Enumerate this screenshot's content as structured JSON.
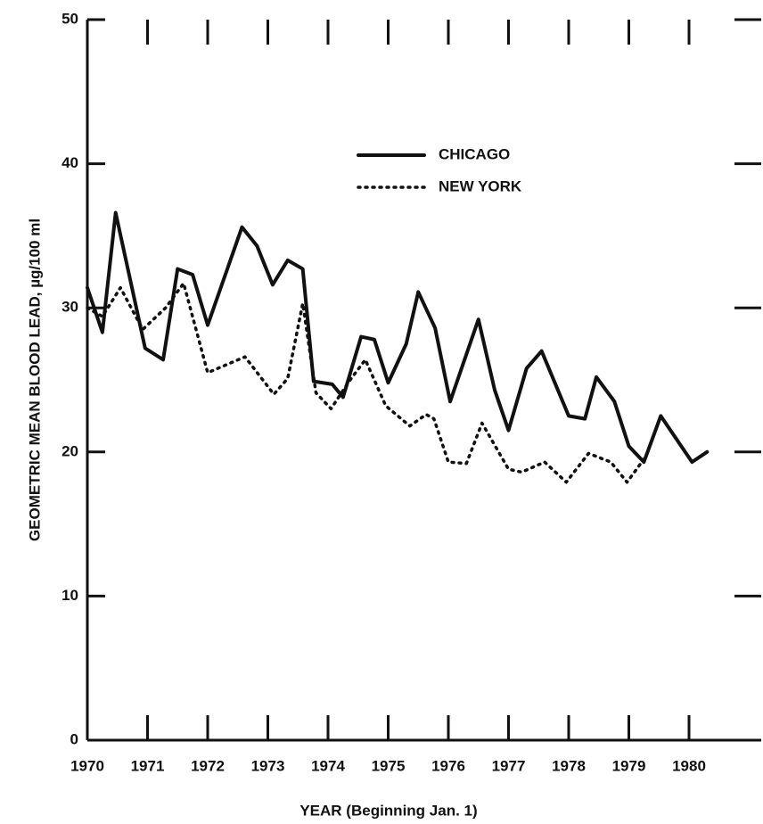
{
  "chart_data": {
    "type": "line",
    "y_label": "GEOMETRIC MEAN BLOOD LEAD, µg/100 ml",
    "x_label": "YEAR (Beginning Jan. 1)",
    "xlim": [
      1970,
      1981.2
    ],
    "xticks": [
      1970,
      1971,
      1972,
      1973,
      1974,
      1975,
      1976,
      1977,
      1978,
      1979,
      1980
    ],
    "ylim": [
      0,
      50
    ],
    "yticks": [
      0,
      10,
      20,
      30,
      40,
      50
    ],
    "series": [
      {
        "name": "CHICAGO",
        "color": "#111111",
        "style": "solid",
        "x": [
          1970.0,
          1970.25,
          1970.47,
          1970.96,
          1971.26,
          1971.5,
          1971.75,
          1972.0,
          1972.57,
          1972.82,
          1973.08,
          1973.33,
          1973.58,
          1973.76,
          1974.07,
          1974.25,
          1974.55,
          1974.77,
          1975.0,
          1975.3,
          1975.5,
          1975.78,
          1976.03,
          1976.5,
          1976.77,
          1977.0,
          1977.3,
          1977.55,
          1978.0,
          1978.27,
          1978.46,
          1978.76,
          1979.0,
          1979.25,
          1979.53,
          1980.05,
          1980.3
        ],
        "values": [
          31.4,
          28.3,
          36.6,
          27.2,
          26.4,
          32.7,
          32.3,
          28.8,
          35.6,
          34.3,
          31.6,
          33.3,
          32.7,
          24.9,
          24.7,
          23.8,
          28.0,
          27.8,
          24.8,
          27.5,
          31.1,
          28.6,
          23.5,
          29.2,
          24.3,
          21.5,
          25.8,
          27.0,
          22.5,
          22.3,
          25.2,
          23.5,
          20.4,
          19.3,
          22.5,
          19.3,
          20.0
        ]
      },
      {
        "name": "NEW YORK",
        "color": "#111111",
        "style": "dotted",
        "x": [
          1970.0,
          1970.25,
          1970.55,
          1970.92,
          1971.3,
          1971.6,
          1972.0,
          1972.62,
          1973.1,
          1973.33,
          1973.58,
          1973.8,
          1974.05,
          1974.35,
          1974.62,
          1974.96,
          1975.36,
          1975.63,
          1975.76,
          1976.0,
          1976.3,
          1976.56,
          1977.0,
          1977.22,
          1977.6,
          1977.96,
          1978.33,
          1978.7,
          1978.97,
          1979.25
        ],
        "values": [
          30.0,
          29.4,
          31.4,
          28.5,
          30.0,
          31.7,
          25.5,
          26.6,
          24.0,
          25.1,
          30.3,
          24.1,
          23.0,
          24.9,
          26.4,
          23.2,
          21.8,
          22.6,
          22.3,
          19.3,
          19.2,
          22.0,
          18.8,
          18.6,
          19.3,
          17.9,
          19.9,
          19.3,
          17.9,
          19.5
        ]
      }
    ]
  }
}
